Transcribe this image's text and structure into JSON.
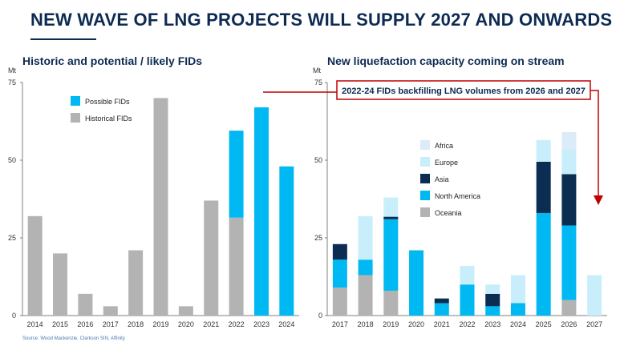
{
  "title": "NEW WAVE OF LNG PROJECTS WILL SUPPLY 2027 AND ONWARDS",
  "source": "Source: Wood Mackenzie, Clarkson SIN, Affinity",
  "callout": "2022-24 FIDs backfilling LNG volumes from 2026 and 2027",
  "colors": {
    "historical": "#b3b3b3",
    "possible": "#00b9f2",
    "oceania": "#b3b3b3",
    "north_america": "#00b9f2",
    "asia": "#0c2d52",
    "europe": "#c9eefb",
    "africa": "#dcebf8",
    "callout_border": "#c00000",
    "title": "#0d2b52"
  },
  "chart_data": [
    {
      "type": "bar",
      "subtitle": "Historic and potential / likely FIDs",
      "ylabel": "Mt",
      "ylim": [
        0,
        75
      ],
      "yticks": [
        "0",
        "25",
        "50",
        "75"
      ],
      "categories": [
        "2014",
        "2015",
        "2016",
        "2017",
        "2018",
        "2019",
        "2020",
        "2021",
        "2022",
        "2023",
        "2024"
      ],
      "stacked": true,
      "legend_position": "top-left",
      "series": [
        {
          "name": "Historical FIDs",
          "key": "historical",
          "values": [
            32,
            20,
            7,
            3,
            21,
            70,
            3,
            37,
            31.5,
            0,
            0
          ]
        },
        {
          "name": "Possible FIDs",
          "key": "possible",
          "values": [
            0,
            0,
            0,
            0,
            0,
            0,
            0,
            0,
            28,
            67,
            48
          ]
        }
      ],
      "legend": [
        {
          "name": "Possible FIDs",
          "key": "possible"
        },
        {
          "name": "Historical FIDs",
          "key": "historical"
        }
      ]
    },
    {
      "type": "bar",
      "subtitle": "New liquefaction capacity coming on stream",
      "ylabel": "Mt",
      "ylim": [
        0,
        75
      ],
      "yticks": [
        "0",
        "25",
        "50",
        "75"
      ],
      "categories": [
        "2017",
        "2018",
        "2019",
        "2020",
        "2021",
        "2022",
        "2023",
        "2024",
        "2025",
        "2026",
        "2027"
      ],
      "stacked": true,
      "legend_position": "center-left",
      "series": [
        {
          "name": "Oceania",
          "key": "oceania",
          "values": [
            9,
            13,
            8,
            0,
            0,
            0,
            0,
            0,
            0,
            5,
            0
          ]
        },
        {
          "name": "North America",
          "key": "north_america",
          "values": [
            9,
            5,
            23,
            21,
            4,
            10,
            3,
            4,
            33,
            24,
            0
          ]
        },
        {
          "name": "Asia",
          "key": "asia",
          "values": [
            5,
            0,
            0.8,
            0,
            1.5,
            0,
            4,
            0,
            16.5,
            16.5,
            0
          ]
        },
        {
          "name": "Europe",
          "key": "europe",
          "values": [
            0,
            14,
            6.2,
            0,
            0,
            6,
            3,
            9,
            7,
            8,
            13
          ]
        },
        {
          "name": "Africa",
          "key": "africa",
          "values": [
            0,
            0,
            0,
            0,
            0,
            0,
            0,
            0,
            0,
            5.5,
            0
          ]
        }
      ],
      "legend": [
        {
          "name": "Africa",
          "key": "africa"
        },
        {
          "name": "Europe",
          "key": "europe"
        },
        {
          "name": "Asia",
          "key": "asia"
        },
        {
          "name": "North America",
          "key": "north_america"
        },
        {
          "name": "Oceania",
          "key": "oceania"
        }
      ]
    }
  ]
}
